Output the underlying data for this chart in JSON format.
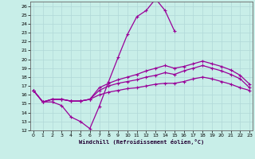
{
  "xlabel": "Windchill (Refroidissement éolien,°C)",
  "x_values": [
    0,
    1,
    2,
    3,
    4,
    5,
    6,
    7,
    8,
    9,
    10,
    11,
    12,
    13,
    14,
    15,
    16,
    17,
    18,
    19,
    20,
    21,
    22,
    23
  ],
  "line_peak": [
    16.5,
    15.2,
    15.2,
    14.8,
    13.5,
    13.0,
    12.2,
    14.7,
    17.5,
    20.2,
    22.8,
    24.8,
    25.5,
    26.8,
    25.5,
    23.2,
    null,
    null,
    null,
    null,
    null,
    null,
    null,
    null
  ],
  "line_upper": [
    16.5,
    15.2,
    15.5,
    15.5,
    15.3,
    15.3,
    15.5,
    16.8,
    17.3,
    17.7,
    18.0,
    18.3,
    18.7,
    19.0,
    19.3,
    19.0,
    19.2,
    19.5,
    19.8,
    19.5,
    19.2,
    18.8,
    18.2,
    17.2
  ],
  "line_mid": [
    16.5,
    15.2,
    15.5,
    15.5,
    15.3,
    15.3,
    15.5,
    16.5,
    17.0,
    17.3,
    17.5,
    17.7,
    18.0,
    18.2,
    18.5,
    18.3,
    18.7,
    19.0,
    19.3,
    19.0,
    18.7,
    18.3,
    17.8,
    16.8
  ],
  "line_lower": [
    16.5,
    15.2,
    15.5,
    15.5,
    15.3,
    15.3,
    15.5,
    16.0,
    16.3,
    16.5,
    16.7,
    16.8,
    17.0,
    17.2,
    17.3,
    17.3,
    17.5,
    17.8,
    18.0,
    17.8,
    17.5,
    17.2,
    16.8,
    16.5
  ],
  "bg_color": "#c8eee8",
  "grid_color": "#b0d8d8",
  "line_color": "#990099",
  "ylim": [
    12,
    26.5
  ],
  "ytick_min": 12,
  "ytick_max": 26,
  "xlim": [
    -0.3,
    23.3
  ],
  "xticks": [
    0,
    1,
    2,
    3,
    4,
    5,
    6,
    7,
    8,
    9,
    10,
    11,
    12,
    13,
    14,
    15,
    16,
    17,
    18,
    19,
    20,
    21,
    22,
    23
  ]
}
